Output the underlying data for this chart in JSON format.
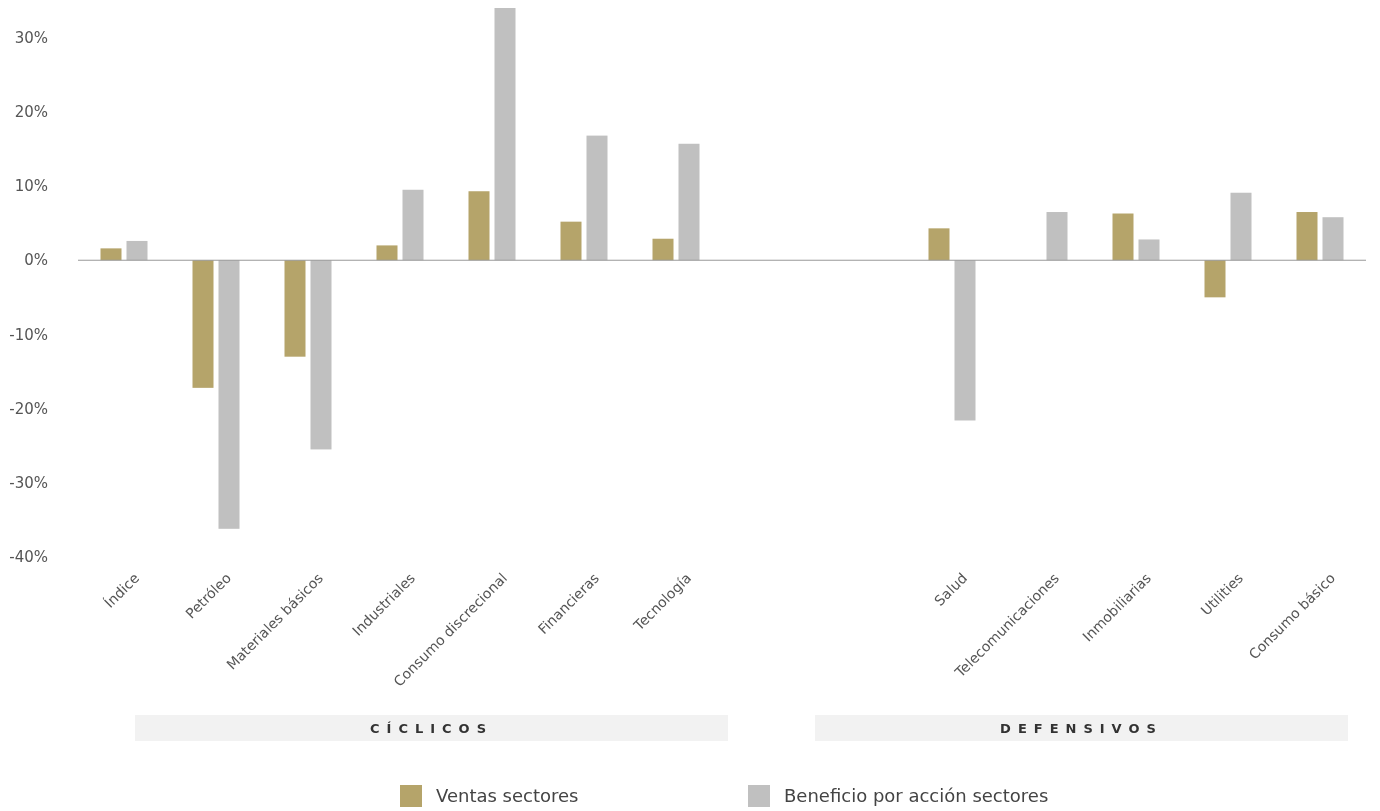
{
  "chart_data": {
    "type": "bar",
    "categories": [
      "Índice",
      "Petróleo",
      "Materiales básicos",
      "Industriales",
      "Consumo discrecional",
      "Financieras",
      "Tecnología",
      null,
      null,
      "Salud",
      "Telecomunicaciones",
      "Inmobiliarias",
      "Utilities",
      "Consumo básico"
    ],
    "series": [
      {
        "name": "Ventas sectores",
        "color": "#b5a46a",
        "values": [
          1.6,
          -17.2,
          -13,
          2,
          9.3,
          5.2,
          2.9,
          null,
          null,
          4.3,
          null,
          6.3,
          -5,
          6.5
        ]
      },
      {
        "name": "Beneficio por acción sectores",
        "color": "#c0c0c0",
        "values": [
          2.6,
          -36.2,
          -25.5,
          9.5,
          34,
          16.8,
          15.7,
          null,
          null,
          -21.6,
          6.5,
          2.8,
          9.1,
          5.8
        ]
      }
    ],
    "ylim": [
      -40,
      34
    ],
    "yticks": [
      {
        "value": -40,
        "label": "-40%"
      },
      {
        "value": -30,
        "label": "-30%"
      },
      {
        "value": -20,
        "label": "-20%"
      },
      {
        "value": -10,
        "label": "-10%"
      },
      {
        "value": 0,
        "label": "0%"
      },
      {
        "value": 10,
        "label": "10%"
      },
      {
        "value": 20,
        "label": "20%"
      },
      {
        "value": 30,
        "label": "30%"
      }
    ],
    "legend": "bottom",
    "annotations": [
      "CÍCLICOS",
      "DEFENSIVOS"
    ]
  }
}
